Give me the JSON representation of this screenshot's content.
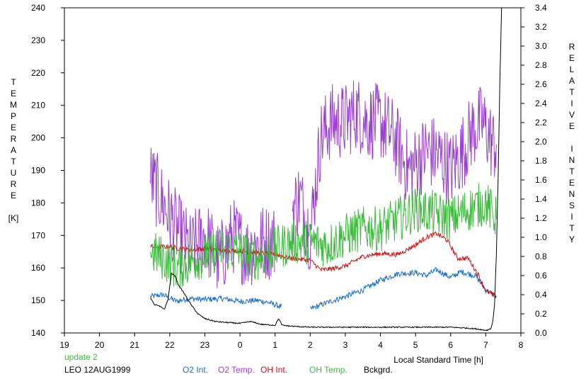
{
  "chart_data": {
    "type": "line",
    "title": "",
    "xlabel": "Local Standard Time [h]",
    "ylabel_left_letters": [
      "T",
      "E",
      "M",
      "P",
      "E",
      "R",
      "A",
      "T",
      "U",
      "R",
      "E"
    ],
    "ylabel_left_unit": "[K]",
    "ylabel_right_letters": [
      "R",
      "E",
      "L",
      "A",
      "T",
      "I",
      "V",
      "E",
      "",
      "I",
      "N",
      "T",
      "E",
      "N",
      "S",
      "I",
      "T",
      "Y"
    ],
    "xlim": [
      19,
      32
    ],
    "xticks": [
      19,
      20,
      21,
      22,
      23,
      24,
      25,
      26,
      27,
      28,
      29,
      30,
      31,
      32
    ],
    "xtick_labels": [
      "19",
      "20",
      "21",
      "22",
      "23",
      "0",
      "1",
      "2",
      "3",
      "4",
      "5",
      "6",
      "7",
      "8"
    ],
    "ylim_left": [
      140,
      240
    ],
    "yticks_left": [
      140,
      150,
      160,
      170,
      180,
      190,
      200,
      210,
      220,
      230,
      240
    ],
    "ylim_right": [
      0,
      3.4
    ],
    "yticks_right_labels": [
      "0.0",
      "0.2",
      "0.4",
      "0.6",
      "0.8",
      "1.0",
      "1.2",
      "1.4",
      "1.6",
      "1.8",
      "2.0",
      "2.2",
      "2.4",
      "2.6",
      "2.8",
      "3.0",
      "3.2",
      "3.4"
    ],
    "grid": false,
    "footer_update": "update 2",
    "footer_site": "LEO 12AUG1999",
    "series": [
      {
        "name": "O2 Int.",
        "axis": "right",
        "color": "#1a6fd1",
        "noise": 0.03,
        "x": [
          21.45,
          21.8,
          22.2,
          22.5,
          23.0,
          23.5,
          24.0,
          24.5,
          24.8,
          25.2,
          25.5,
          26.0,
          26.5,
          27.0,
          27.5,
          28.0,
          28.5,
          29.0,
          29.3,
          29.6,
          30.0,
          30.3,
          30.7,
          31.0,
          31.3
        ],
        "y": [
          0.38,
          0.4,
          0.33,
          0.36,
          0.35,
          0.36,
          0.33,
          0.34,
          0.32,
          0.27,
          null,
          0.25,
          0.32,
          0.38,
          0.45,
          0.55,
          0.62,
          0.63,
          0.6,
          0.66,
          0.58,
          0.64,
          0.6,
          0.45,
          0.38
        ]
      },
      {
        "name": "O2 Temp.",
        "axis": "left",
        "color": "#9a40d0",
        "noise": 12,
        "x": [
          21.45,
          21.8,
          22.2,
          22.6,
          23.0,
          23.4,
          23.8,
          24.2,
          24.6,
          25.0,
          25.2,
          25.5,
          25.7,
          26.0,
          26.3,
          26.6,
          27.0,
          27.3,
          27.6,
          28.0,
          28.4,
          28.8,
          29.0,
          29.3,
          29.6,
          30.0,
          30.3,
          30.6,
          30.9,
          31.2,
          31.3
        ],
        "y": [
          188,
          180,
          172,
          165,
          170,
          162,
          170,
          165,
          168,
          168,
          null,
          178,
          182,
          170,
          200,
          205,
          205,
          208,
          205,
          205,
          200,
          190,
          192,
          196,
          195,
          190,
          195,
          202,
          205,
          198,
          198
        ]
      },
      {
        "name": "OH Int.",
        "axis": "right",
        "color": "#d01010",
        "noise": 0.025,
        "x": [
          21.45,
          22.0,
          22.5,
          23.0,
          23.5,
          24.0,
          24.5,
          25.0,
          25.5,
          26.0,
          26.3,
          26.6,
          27.0,
          27.5,
          28.0,
          28.5,
          29.0,
          29.3,
          29.6,
          29.9,
          30.2,
          30.5,
          30.8,
          31.0,
          31.3
        ],
        "y": [
          0.9,
          0.9,
          0.87,
          0.88,
          0.86,
          0.86,
          0.84,
          0.82,
          0.78,
          0.76,
          0.66,
          0.67,
          0.7,
          0.8,
          0.83,
          0.82,
          0.92,
          1.0,
          1.04,
          0.97,
          0.78,
          0.78,
          0.6,
          0.44,
          0.38
        ]
      },
      {
        "name": "OH Temp.",
        "axis": "left",
        "color": "#3cbc3c",
        "noise": 7,
        "x": [
          21.45,
          21.8,
          22.2,
          22.6,
          23.0,
          23.5,
          24.0,
          24.5,
          25.0,
          25.5,
          26.0,
          26.5,
          27.0,
          27.5,
          28.0,
          28.5,
          29.0,
          29.5,
          30.0,
          30.5,
          31.0,
          31.3
        ],
        "y": [
          165,
          163,
          160,
          162,
          164,
          166,
          165,
          163,
          166,
          168,
          168,
          167,
          170,
          172,
          172,
          175,
          178,
          177,
          175,
          178,
          180,
          175
        ]
      },
      {
        "name": "Bckgrd.",
        "axis": "right",
        "color": "#000000",
        "noise": 0.006,
        "x": [
          21.45,
          21.55,
          21.7,
          21.85,
          21.95,
          22.05,
          22.15,
          22.25,
          22.4,
          22.6,
          22.8,
          23.0,
          23.3,
          23.6,
          24.0,
          24.3,
          24.6,
          25.0,
          25.1,
          25.2,
          25.5,
          26.0,
          26.5,
          27.0,
          28.0,
          29.0,
          30.0,
          30.5,
          30.8,
          30.95,
          31.05,
          31.15,
          31.2,
          31.25,
          31.3,
          31.35,
          31.4,
          31.45
        ],
        "y": [
          0.37,
          0.3,
          0.28,
          0.25,
          0.35,
          0.62,
          0.6,
          0.5,
          0.42,
          0.3,
          0.2,
          0.15,
          0.12,
          0.11,
          0.1,
          0.12,
          0.09,
          0.08,
          0.15,
          0.08,
          0.07,
          0.06,
          0.06,
          0.06,
          0.06,
          0.06,
          0.06,
          0.05,
          0.04,
          0.03,
          0.03,
          0.05,
          0.12,
          0.3,
          0.8,
          1.6,
          2.6,
          3.4
        ]
      }
    ]
  }
}
